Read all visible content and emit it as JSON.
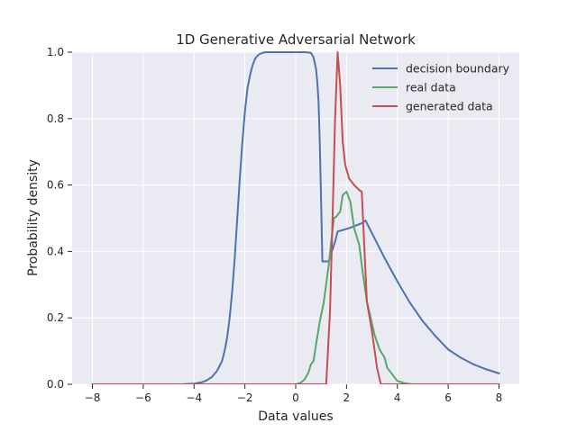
{
  "chart_data": {
    "type": "line",
    "title": "1D Generative Adversarial Network",
    "xlabel": "Data values",
    "ylabel": "Probability density",
    "xlim": [
      -8.8,
      8.8
    ],
    "ylim": [
      0.0,
      1.0
    ],
    "xticks": [
      "−8",
      "−6",
      "−4",
      "−2",
      "0",
      "2",
      "4",
      "6",
      "8"
    ],
    "xtick_values": [
      -8,
      -6,
      -4,
      -2,
      0,
      2,
      4,
      6,
      8
    ],
    "yticks": [
      "0.0",
      "0.2",
      "0.4",
      "0.6",
      "0.8",
      "1.0"
    ],
    "ytick_values": [
      0.0,
      0.2,
      0.4,
      0.6,
      0.8,
      1.0
    ],
    "grid": true,
    "legend_position": "top-right",
    "background": "#eaeaf2",
    "series": [
      {
        "name": "decision boundary",
        "color": "#4c72b0",
        "x": [
          -8,
          -6,
          -5,
          -4.5,
          -4,
          -3.7,
          -3.5,
          -3.3,
          -3.1,
          -2.9,
          -2.8,
          -2.7,
          -2.6,
          -2.5,
          -2.4,
          -2.3,
          -2.2,
          -2.1,
          -2.0,
          -1.9,
          -1.8,
          -1.7,
          -1.6,
          -1.5,
          -1.4,
          -1.3,
          -1.2,
          -1.0,
          -0.5,
          0.0,
          0.4,
          0.6,
          0.7,
          0.8,
          0.85,
          0.9,
          0.95,
          1.0,
          1.05,
          1.3,
          1.55,
          1.65,
          2.1,
          2.6,
          2.75,
          3.0,
          3.5,
          4.0,
          4.5,
          5.0,
          5.5,
          6.0,
          6.5,
          7.0,
          7.5,
          8.0
        ],
        "y": [
          0.0,
          0.0,
          0.0,
          0.0,
          0.002,
          0.006,
          0.012,
          0.022,
          0.04,
          0.07,
          0.1,
          0.14,
          0.2,
          0.28,
          0.38,
          0.5,
          0.62,
          0.73,
          0.82,
          0.89,
          0.93,
          0.96,
          0.98,
          0.99,
          0.995,
          0.998,
          1.0,
          1.0,
          1.0,
          1.0,
          1.0,
          0.998,
          0.985,
          0.95,
          0.91,
          0.85,
          0.72,
          0.55,
          0.37,
          0.37,
          0.43,
          0.46,
          0.47,
          0.485,
          0.493,
          0.455,
          0.38,
          0.31,
          0.245,
          0.19,
          0.145,
          0.105,
          0.08,
          0.06,
          0.045,
          0.033
        ]
      },
      {
        "name": "real data",
        "color": "#55a868",
        "x": [
          -8,
          -1,
          -0.5,
          0.0,
          0.2,
          0.35,
          0.5,
          0.6,
          0.7,
          0.8,
          0.95,
          1.1,
          1.3,
          1.5,
          1.6,
          1.75,
          1.85,
          2.0,
          2.15,
          2.3,
          2.5,
          2.65,
          2.8,
          2.95,
          3.1,
          3.3,
          3.5,
          3.6,
          3.8,
          4.0,
          4.3,
          4.6,
          5.0,
          8.0
        ],
        "y": [
          0.0,
          0.0,
          0.0,
          0.0,
          0.005,
          0.015,
          0.035,
          0.06,
          0.07,
          0.12,
          0.19,
          0.245,
          0.36,
          0.5,
          0.505,
          0.52,
          0.57,
          0.58,
          0.55,
          0.47,
          0.42,
          0.33,
          0.25,
          0.2,
          0.15,
          0.105,
          0.08,
          0.05,
          0.03,
          0.01,
          0.003,
          0.0,
          0.0,
          0.0
        ]
      },
      {
        "name": "generated data",
        "color": "#c44e52",
        "x": [
          -8,
          1.2,
          1.35,
          1.45,
          1.55,
          1.65,
          1.75,
          1.85,
          1.95,
          2.1,
          2.3,
          2.5,
          2.6,
          2.8,
          3.0,
          3.2,
          3.35,
          8.0
        ],
        "y": [
          0.0,
          0.0,
          0.22,
          0.5,
          0.8,
          1.0,
          0.9,
          0.73,
          0.66,
          0.62,
          0.6,
          0.585,
          0.58,
          0.25,
          0.16,
          0.05,
          0.0,
          0.0
        ]
      }
    ]
  }
}
